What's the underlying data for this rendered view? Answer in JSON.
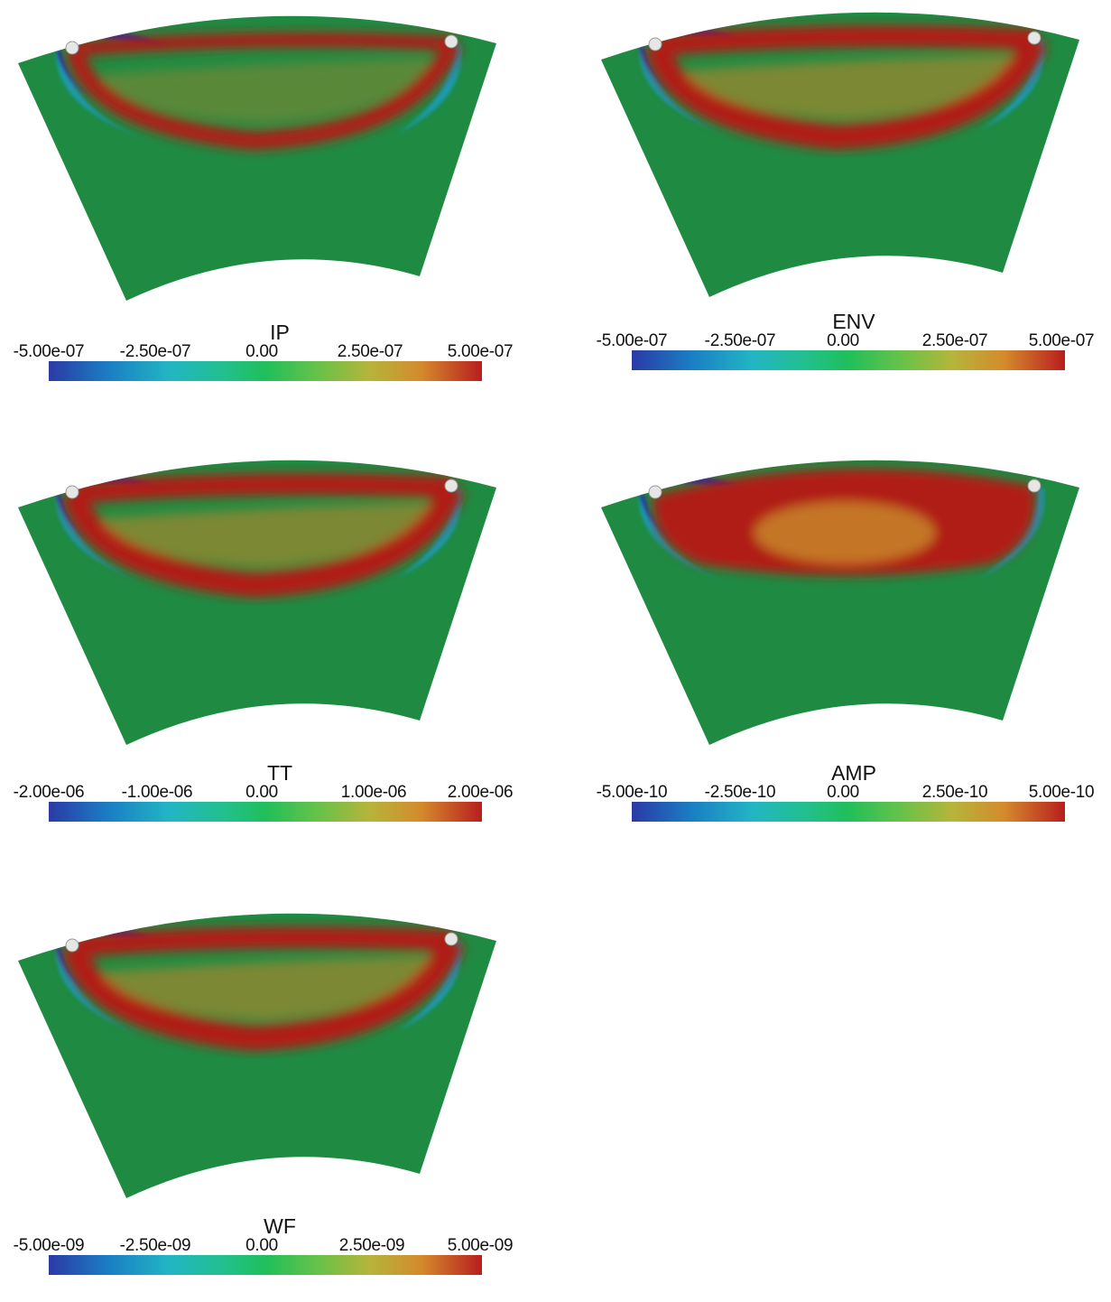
{
  "panels": [
    {
      "id": "ip",
      "title": "IP",
      "ticks": [
        "-5.00e-07",
        "-2.50e-07",
        "0.00",
        "2.50e-07",
        "5.00e-07"
      ],
      "variant": "thin"
    },
    {
      "id": "env",
      "title": "ENV",
      "ticks": [
        "-5.00e-07",
        "-2.50e-07",
        "0.00",
        "2.50e-07",
        "5.00e-07"
      ],
      "variant": "medium"
    },
    {
      "id": "tt",
      "title": "TT",
      "ticks": [
        "-2.00e-06",
        "-1.00e-06",
        "0.00",
        "1.00e-06",
        "2.00e-06"
      ],
      "variant": "medium"
    },
    {
      "id": "amp",
      "title": "AMP",
      "ticks": [
        "-5.00e-10",
        "-2.50e-10",
        "0.00",
        "2.50e-10",
        "5.00e-10"
      ],
      "variant": "full"
    },
    {
      "id": "wf",
      "title": "WF",
      "ticks": [
        "-5.00e-09",
        "-2.50e-09",
        "0.00",
        "2.50e-09",
        "5.00e-09"
      ],
      "variant": "medium"
    }
  ],
  "colors": {
    "background_field": "#1f8a42",
    "positive_max": "#b01a14",
    "mid_orange": "#c8872a",
    "negative_max": "#2433a8",
    "negative_mid": "#1aa0c0",
    "receiver": "#e6e6e6"
  }
}
